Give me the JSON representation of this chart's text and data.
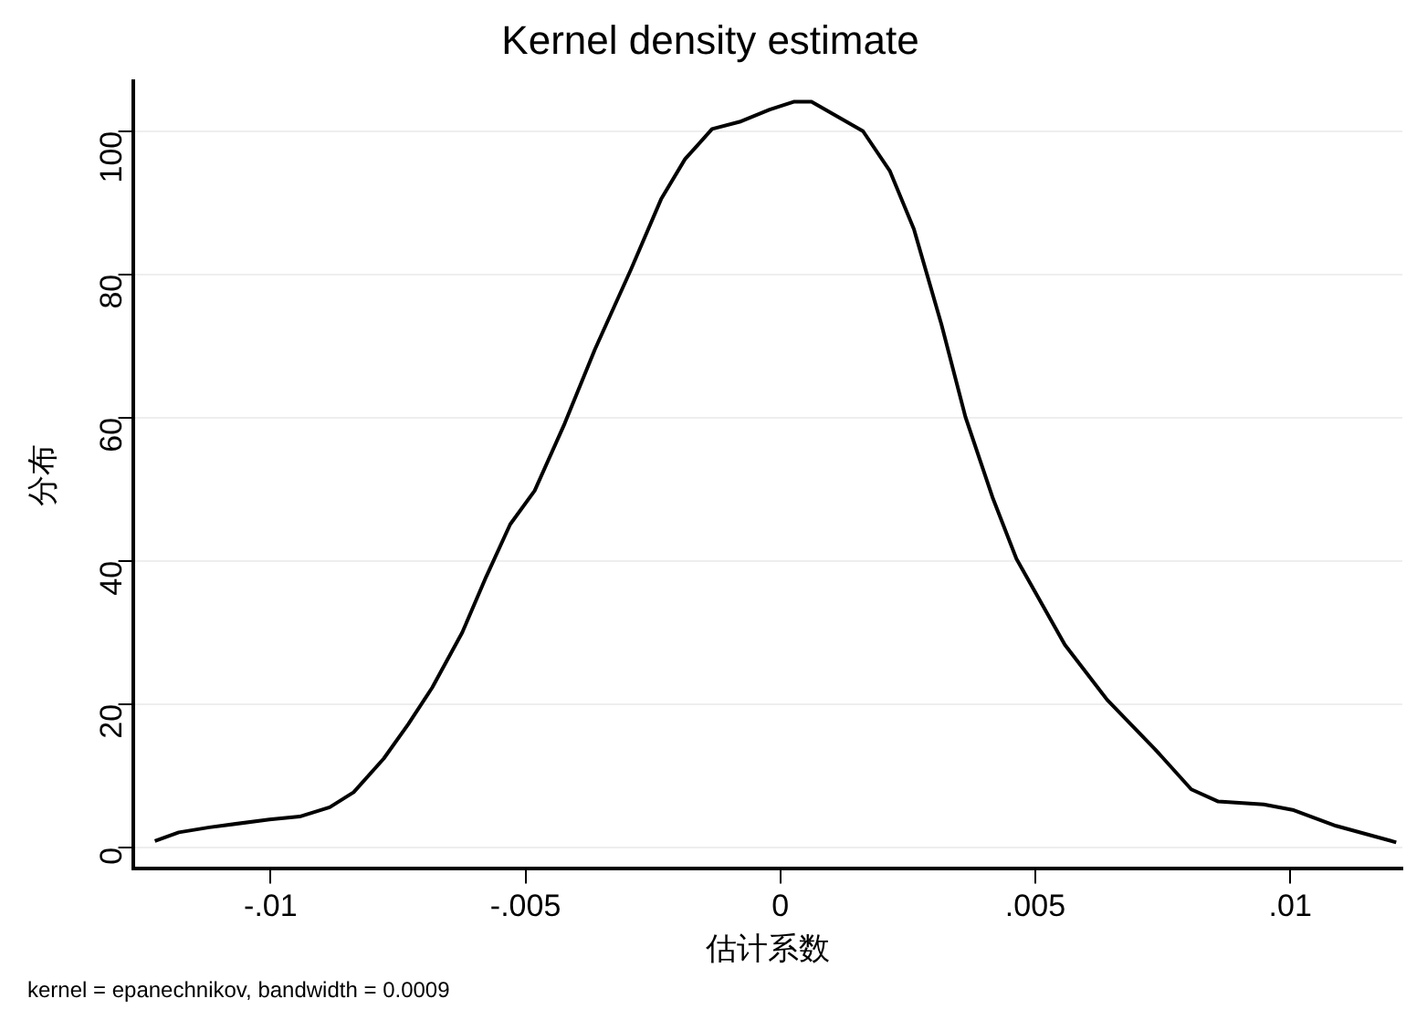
{
  "chart_data": {
    "type": "line",
    "title": "Kernel density estimate",
    "xlabel": "估计系数",
    "ylabel": "分布",
    "annotations": [
      "kernel = epanechnikov, bandwidth = 0.0009"
    ],
    "x": [
      -0.01227,
      -0.0118,
      -0.0112,
      -0.01002,
      -0.00943,
      -0.00884,
      -0.00837,
      -0.00778,
      -0.0073,
      -0.00683,
      -0.00624,
      -0.00577,
      -0.0053,
      -0.00482,
      -0.00423,
      -0.00364,
      -0.00293,
      -0.00234,
      -0.00187,
      -0.00134,
      -0.0008,
      -0.00021,
      0.00026,
      0.00061,
      0.00162,
      0.00215,
      0.00262,
      0.00316,
      0.00363,
      0.00416,
      0.00463,
      0.00558,
      0.00641,
      0.00735,
      0.00806,
      0.00859,
      0.00948,
      0.01007,
      0.0109,
      0.01208
    ],
    "series": [
      {
        "color": "#000000",
        "values": [
          0.9,
          2.1,
          2.8,
          3.9,
          4.3,
          5.6,
          7.7,
          12.4,
          17.2,
          22.3,
          30.0,
          37.8,
          45.1,
          49.8,
          59.2,
          69.5,
          80.7,
          90.5,
          96.1,
          100.3,
          101.3,
          103.0,
          104.1,
          104.1,
          100.0,
          94.4,
          86.3,
          73.0,
          60.1,
          48.9,
          40.3,
          28.3,
          20.6,
          13.7,
          8.1,
          6.4,
          6.0,
          5.2,
          3.0,
          0.7
        ]
      }
    ],
    "xlim": [
      -0.0127,
      0.0122
    ],
    "xticks": [
      {
        "value": -0.01,
        "label": "-.01"
      },
      {
        "value": -0.005,
        "label": "-.005"
      },
      0,
      {
        "value": 0.005,
        "label": ".005"
      },
      {
        "value": 0.01,
        "label": ".01"
      }
    ],
    "ylim": [
      -3,
      107
    ],
    "yticks": [
      0,
      20,
      40,
      60,
      80,
      100
    ],
    "grid": "y",
    "marker": "none",
    "line_style": "solid",
    "legend": false
  }
}
